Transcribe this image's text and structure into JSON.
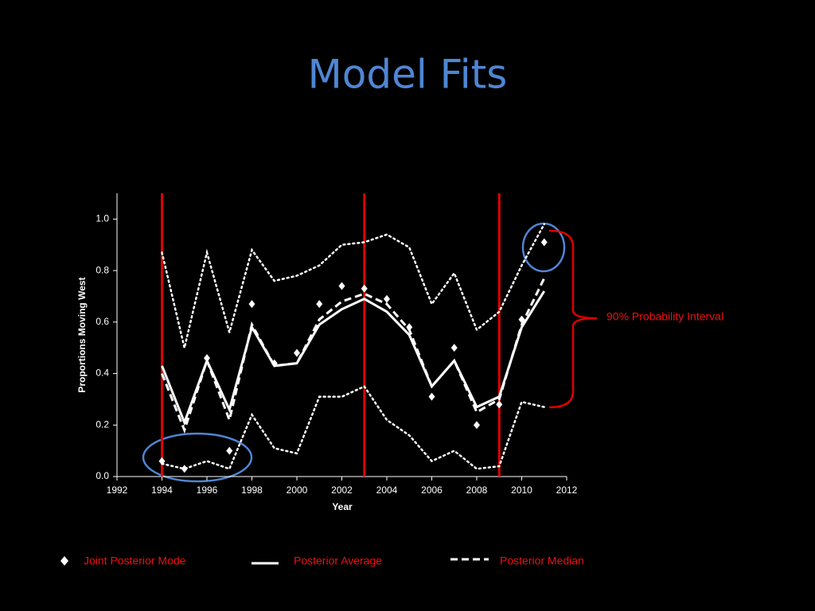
{
  "chart_data": {
    "type": "line",
    "title": "Model Fits",
    "x_label": "Year",
    "y_label": "Proportions Moving West",
    "x": [
      1994,
      1995,
      1996,
      1997,
      1998,
      1999,
      2000,
      2001,
      2002,
      2003,
      2004,
      2005,
      2006,
      2007,
      2008,
      2009,
      2010,
      2011
    ],
    "series": [
      {
        "name": "Joint Posterior Mode",
        "color": "#ffffff",
        "style": "diamond",
        "values": [
          0.06,
          0.03,
          0.46,
          0.1,
          0.67,
          0.44,
          0.48,
          0.67,
          0.74,
          0.73,
          0.69,
          0.58,
          0.31,
          0.5,
          0.2,
          0.28,
          0.61,
          0.91
        ]
      },
      {
        "name": "Posterior Average",
        "color": "#ffffff",
        "style": "solid",
        "values": [
          0.43,
          0.21,
          0.45,
          0.26,
          0.58,
          0.43,
          0.44,
          0.59,
          0.65,
          0.69,
          0.64,
          0.55,
          0.35,
          0.45,
          0.27,
          0.31,
          0.58,
          0.72
        ]
      },
      {
        "name": "Posterior Median",
        "color": "#ffffff",
        "style": "dashed",
        "values": [
          0.4,
          0.18,
          0.45,
          0.22,
          0.59,
          0.43,
          0.44,
          0.61,
          0.68,
          0.71,
          0.67,
          0.57,
          0.35,
          0.45,
          0.25,
          0.3,
          0.59,
          0.77
        ]
      }
    ],
    "interval": {
      "label": "90% Probability Interval",
      "color": "#ffffff",
      "upper": [
        0.87,
        0.5,
        0.87,
        0.56,
        0.88,
        0.76,
        0.78,
        0.82,
        0.9,
        0.91,
        0.94,
        0.89,
        0.67,
        0.79,
        0.57,
        0.64,
        0.82,
        0.98
      ],
      "lower": [
        0.05,
        0.03,
        0.06,
        0.03,
        0.24,
        0.11,
        0.09,
        0.31,
        0.31,
        0.35,
        0.22,
        0.16,
        0.06,
        0.1,
        0.03,
        0.04,
        0.29,
        0.27
      ]
    },
    "vlines": [
      1994,
      2003,
      2009
    ],
    "vline_color": "#e00000",
    "legend_text_color": "#ee1111",
    "xlim": [
      1992,
      2012
    ],
    "xticks": [
      1992,
      1994,
      1996,
      1998,
      2000,
      2002,
      2004,
      2006,
      2008,
      2010,
      2012
    ],
    "ylim": [
      0,
      1.1
    ],
    "yticks": [
      {
        "value": 0,
        "label": "0.0"
      },
      {
        "value": 0.2,
        "label": "0.2"
      },
      {
        "value": 0.4,
        "label": "0.4"
      },
      {
        "value": 0.6,
        "label": "0.6"
      },
      {
        "value": 0.8,
        "label": "0.8"
      },
      {
        "value": 1,
        "label": "1.0"
      }
    ]
  }
}
